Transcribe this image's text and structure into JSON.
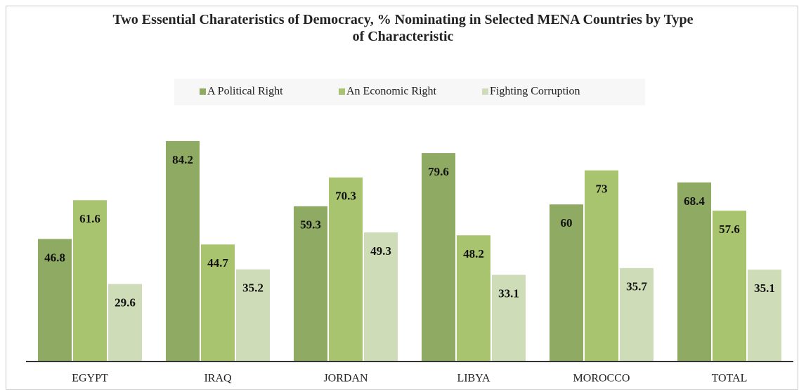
{
  "chart_data": {
    "type": "bar",
    "title": "Two Essential Charateristics of Democracy, % Nominating in Selected MENA Countries by Type of Characteristic",
    "categories": [
      "EGYPT",
      "IRAQ",
      "JORDAN",
      "LIBYA",
      "MOROCCO",
      "TOTAL"
    ],
    "series": [
      {
        "name": "A Political Right",
        "color": "#8faa63",
        "values": [
          46.8,
          84.2,
          59.3,
          79.6,
          60,
          68.4
        ]
      },
      {
        "name": "An Economic Right",
        "color": "#a9c46f",
        "values": [
          61.6,
          44.7,
          70.3,
          48.2,
          73,
          57.6
        ]
      },
      {
        "name": "Fighting Corruption",
        "color": "#cfdcb8",
        "values": [
          29.6,
          35.2,
          49.3,
          33.1,
          35.7,
          35.1
        ]
      }
    ],
    "ylim": [
      0,
      100
    ],
    "legend": "top",
    "grid": false
  }
}
